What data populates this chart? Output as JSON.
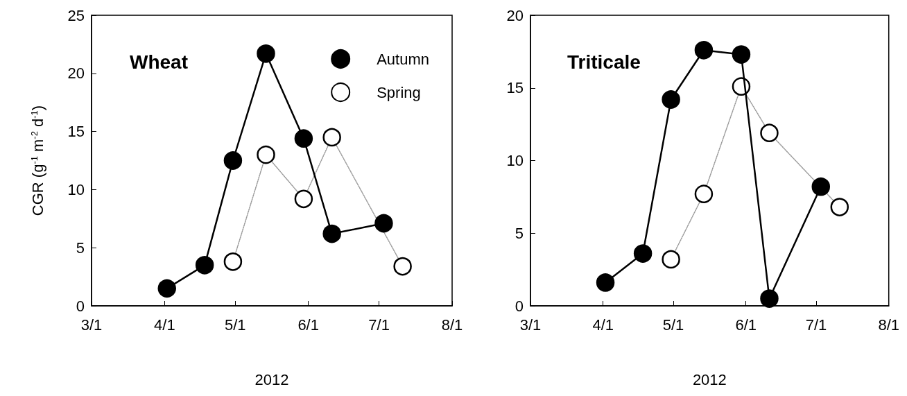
{
  "chart_data": [
    {
      "type": "line",
      "title": "Wheat",
      "xlabel": "2012",
      "ylabel": "CGR (g$^{-1}$ m$^{-2}$ d$^{-1}$)",
      "xlim": [
        "2012-03-01",
        "2012-08-01"
      ],
      "xticks": [
        {
          "value": "2012-03-01",
          "label": "3/1"
        },
        {
          "value": "2012-04-01",
          "label": "4/1"
        },
        {
          "value": "2012-05-01",
          "label": "5/1"
        },
        {
          "value": "2012-06-01",
          "label": "6/1"
        },
        {
          "value": "2012-07-01",
          "label": "7/1"
        },
        {
          "value": "2012-08-01",
          "label": "8/1"
        }
      ],
      "ylim": [
        0,
        25
      ],
      "yticks": [
        0,
        5,
        10,
        15,
        20,
        25
      ],
      "marker": "circle",
      "legend": "top right",
      "grid": false,
      "series": [
        {
          "name": "Autumn",
          "color": "#000000",
          "line_style": "solid",
          "x": [
            "2012-04-02",
            "2012-04-18",
            "2012-04-30",
            "2012-05-14",
            "2012-05-30",
            "2012-06-11",
            "2012-07-03"
          ],
          "values": [
            1.5,
            3.5,
            12.5,
            21.7,
            14.4,
            6.2,
            7.1
          ]
        },
        {
          "name": "Spring",
          "color": "#ffffff",
          "line_style": "dotted",
          "x": [
            "2012-04-30",
            "2012-05-14",
            "2012-05-30",
            "2012-06-11",
            "2012-07-11"
          ],
          "values": [
            3.8,
            13.0,
            9.2,
            14.5,
            3.4
          ]
        }
      ]
    },
    {
      "type": "line",
      "title": "Triticale",
      "xlabel": "2012",
      "xlim": [
        "2012-03-01",
        "2012-08-01"
      ],
      "xticks": [
        {
          "value": "2012-03-01",
          "label": "3/1"
        },
        {
          "value": "2012-04-01",
          "label": "4/1"
        },
        {
          "value": "2012-05-01",
          "label": "5/1"
        },
        {
          "value": "2012-06-01",
          "label": "6/1"
        },
        {
          "value": "2012-07-01",
          "label": "7/1"
        },
        {
          "value": "2012-08-01",
          "label": "8/1"
        }
      ],
      "ylim": [
        0,
        20
      ],
      "yticks": [
        0,
        5,
        10,
        15,
        20
      ],
      "marker": "circle",
      "grid": false,
      "series": [
        {
          "color": "#000000",
          "line_style": "solid",
          "x": [
            "2012-04-02",
            "2012-04-18",
            "2012-04-30",
            "2012-05-14",
            "2012-05-30",
            "2012-06-11",
            "2012-07-03"
          ],
          "values": [
            1.6,
            3.6,
            14.2,
            17.6,
            17.3,
            0.5,
            8.2
          ]
        },
        {
          "color": "#ffffff",
          "line_style": "dotted",
          "x": [
            "2012-04-30",
            "2012-05-14",
            "2012-05-30",
            "2012-06-11",
            "2012-07-11"
          ],
          "values": [
            3.2,
            7.7,
            15.1,
            11.9,
            6.8
          ]
        }
      ]
    }
  ]
}
